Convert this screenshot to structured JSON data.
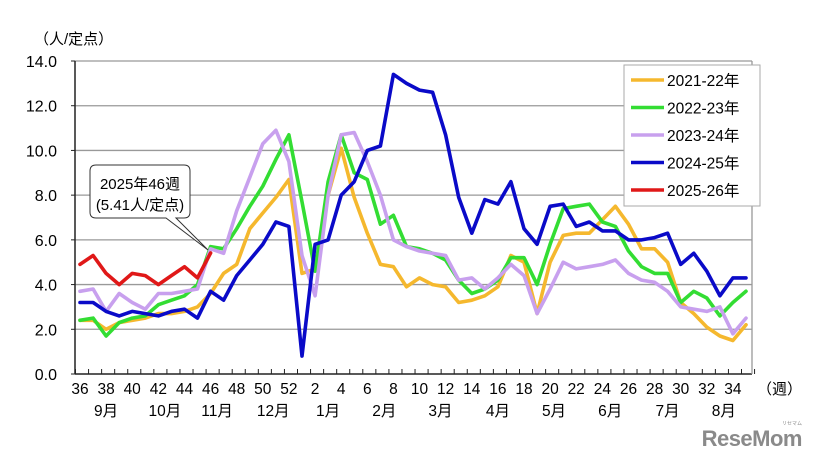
{
  "chart_data": {
    "type": "line",
    "title": "",
    "ylabel": "（人/定点）",
    "xlabel": "（週）",
    "ylim": [
      0,
      14
    ],
    "yticks": [
      "0.0",
      "2.0",
      "4.0",
      "6.0",
      "8.0",
      "10.0",
      "12.0",
      "14.0"
    ],
    "grid": true,
    "legend_position": "upper right",
    "x": [
      36,
      37,
      38,
      39,
      40,
      41,
      42,
      43,
      44,
      45,
      46,
      47,
      48,
      49,
      50,
      51,
      52,
      1,
      2,
      3,
      4,
      5,
      6,
      7,
      8,
      9,
      10,
      11,
      12,
      13,
      14,
      15,
      16,
      17,
      18,
      19,
      20,
      21,
      22,
      23,
      24,
      25,
      26,
      27,
      28,
      29,
      30,
      31,
      32,
      33,
      34,
      35
    ],
    "xtick_labels": [
      "36",
      "38",
      "40",
      "42",
      "44",
      "46",
      "48",
      "50",
      "52",
      "2",
      "4",
      "6",
      "8",
      "10",
      "12",
      "14",
      "16",
      "18",
      "20",
      "22",
      "24",
      "26",
      "28",
      "30",
      "32",
      "34"
    ],
    "month_labels": [
      {
        "label": "9月",
        "week_index": 2
      },
      {
        "label": "10月",
        "week_index": 6.5
      },
      {
        "label": "11月",
        "week_index": 10.5
      },
      {
        "label": "12月",
        "week_index": 14.8
      },
      {
        "label": "1月",
        "week_index": 19
      },
      {
        "label": "2月",
        "week_index": 23.3
      },
      {
        "label": "3月",
        "week_index": 27.6
      },
      {
        "label": "4月",
        "week_index": 32
      },
      {
        "label": "5月",
        "week_index": 36.3
      },
      {
        "label": "6月",
        "week_index": 40.6
      },
      {
        "label": "7月",
        "week_index": 45
      },
      {
        "label": "8月",
        "week_index": 49.3
      }
    ],
    "series": [
      {
        "name": "2021-22年",
        "color": "#f5b82e",
        "values": [
          2.4,
          2.4,
          2.0,
          2.3,
          2.4,
          2.5,
          2.7,
          2.7,
          2.8,
          3.0,
          3.6,
          4.5,
          4.9,
          6.5,
          7.2,
          7.9,
          8.7,
          4.5,
          4.7,
          8.0,
          10.1,
          7.9,
          6.3,
          4.9,
          4.8,
          3.9,
          4.3,
          4.0,
          3.9,
          3.2,
          3.3,
          3.5,
          3.9,
          5.3,
          5.0,
          2.7,
          5.0,
          6.2,
          6.3,
          6.3,
          6.9,
          7.5,
          6.7,
          5.6,
          5.6,
          5.0,
          3.2,
          2.7,
          2.1,
          1.7,
          1.5,
          2.2
        ]
      },
      {
        "name": "2022-23年",
        "color": "#33dd33",
        "values": [
          2.4,
          2.5,
          1.7,
          2.3,
          2.5,
          2.6,
          3.1,
          3.3,
          3.5,
          4.0,
          5.7,
          5.6,
          6.5,
          7.5,
          8.4,
          9.6,
          10.7,
          7.7,
          4.6,
          8.6,
          10.7,
          9.0,
          8.7,
          6.7,
          7.1,
          5.7,
          5.6,
          5.4,
          5.1,
          4.2,
          3.6,
          3.8,
          4.2,
          5.2,
          5.2,
          4.0,
          5.8,
          7.4,
          7.5,
          7.6,
          6.8,
          6.6,
          5.5,
          4.8,
          4.5,
          4.5,
          3.2,
          3.7,
          3.4,
          2.6,
          3.2,
          3.7
        ]
      },
      {
        "name": "2023-24年",
        "color": "#c8a0ee",
        "values": [
          3.7,
          3.8,
          2.8,
          3.6,
          3.2,
          2.9,
          3.6,
          3.6,
          3.7,
          3.8,
          5.6,
          5.4,
          7.3,
          8.8,
          10.3,
          10.9,
          9.5,
          5.3,
          3.5,
          8.0,
          10.7,
          10.8,
          9.5,
          8.0,
          6.0,
          5.7,
          5.5,
          5.4,
          5.3,
          4.2,
          4.3,
          3.8,
          4.3,
          4.9,
          4.4,
          2.7,
          3.8,
          5.0,
          4.7,
          4.8,
          4.9,
          5.1,
          4.5,
          4.2,
          4.1,
          3.7,
          3.0,
          2.9,
          2.8,
          3.0,
          1.8,
          2.5
        ]
      },
      {
        "name": "2024-25年",
        "color": "#0a0ac8",
        "values": [
          3.2,
          3.2,
          2.8,
          2.6,
          2.8,
          2.7,
          2.6,
          2.8,
          2.9,
          2.5,
          3.7,
          3.3,
          4.4,
          5.1,
          5.8,
          6.8,
          6.6,
          0.8,
          5.8,
          6.0,
          8.0,
          8.6,
          10.0,
          10.2,
          13.4,
          13.0,
          12.7,
          12.6,
          10.7,
          7.9,
          6.3,
          7.8,
          7.6,
          8.6,
          6.5,
          5.8,
          7.5,
          7.6,
          6.6,
          6.8,
          6.4,
          6.4,
          6.0,
          6.0,
          6.1,
          6.3,
          4.9,
          5.4,
          4.6,
          3.5,
          4.3,
          4.3
        ]
      },
      {
        "name": "2025-26年",
        "color": "#e01818",
        "values": [
          4.9,
          5.3,
          4.5,
          4.0,
          4.5,
          4.4,
          4.0,
          4.4,
          4.8,
          4.3,
          5.41,
          null,
          null,
          null,
          null,
          null,
          null,
          null,
          null,
          null,
          null,
          null,
          null,
          null,
          null,
          null,
          null,
          null,
          null,
          null,
          null,
          null,
          null,
          null,
          null,
          null,
          null,
          null,
          null,
          null,
          null,
          null,
          null,
          null,
          null,
          null,
          null,
          null,
          null,
          null,
          null,
          null
        ]
      }
    ],
    "annotations": [
      {
        "text_line1": "2025年46週",
        "text_line2": "(5.41人/定点)",
        "series": "2025-26年",
        "week": 46,
        "value": 5.41
      }
    ]
  },
  "watermark": {
    "text": "ReseMom",
    "small": "リセマム"
  }
}
